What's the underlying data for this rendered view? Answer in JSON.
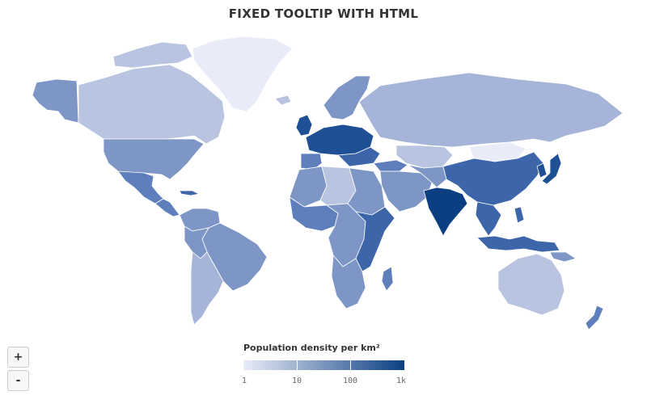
{
  "title": "FIXED TOOLTIP WITH HTML",
  "zoom": {
    "in_label": "+",
    "out_label": "-"
  },
  "legend": {
    "title": "Population density per km²",
    "ticks": [
      "1",
      "10",
      "100",
      "1k"
    ],
    "color_low": "#e9ecf8",
    "color_high": "#0b3f82"
  },
  "colors": {
    "border": "#ffffff",
    "very_low": "#e9ecf8",
    "low": "#b8c4e0",
    "mid_low": "#a5b4d8",
    "mid": "#7e96c6",
    "mid_high": "#5e7fbb",
    "high": "#3d65a9",
    "very_high": "#1f4f94",
    "max": "#0b3f82"
  }
}
